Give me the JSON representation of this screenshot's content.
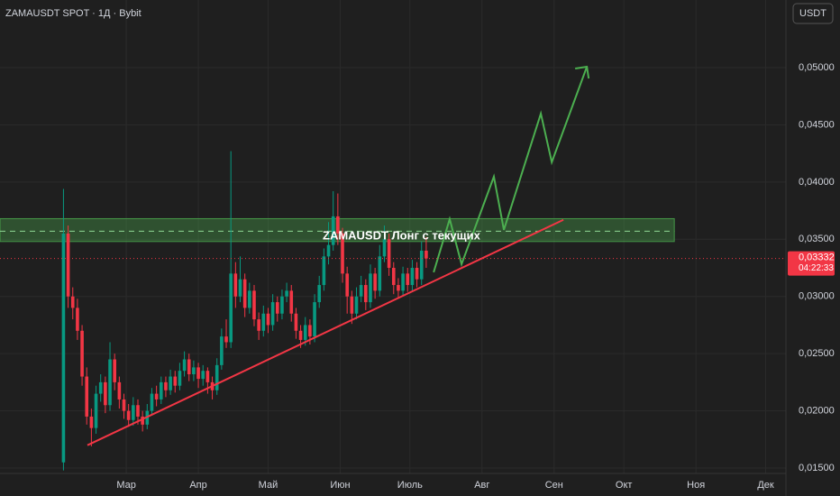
{
  "chart_data": {
    "type": "candlestick",
    "title": "ZAMAUSDT SPOT · 1Д · Bybit",
    "currency": "USDT",
    "annotation": "ZAMAUSDT   Лонг с текущих",
    "up_color": "#089981",
    "down_color": "#f23645",
    "x": [
      -27,
      -25,
      -23,
      -21,
      -19,
      -17,
      -15,
      -13,
      -11,
      -9,
      -7,
      -5,
      -3,
      -1,
      1,
      3,
      5,
      7,
      9,
      11,
      13,
      15,
      17,
      19,
      21,
      23,
      25,
      27,
      29,
      31,
      33,
      35,
      37,
      39,
      41,
      43,
      45,
      47,
      49,
      51,
      53,
      55,
      57,
      59,
      61,
      63,
      65,
      67,
      69,
      71,
      73,
      75,
      77,
      79,
      81,
      83,
      85,
      87,
      89,
      91,
      93,
      95,
      97,
      99,
      101,
      103,
      105,
      107,
      109,
      111,
      113,
      115,
      117,
      119,
      121,
      123,
      125,
      127,
      129
    ],
    "open": [
      0.0155,
      0.0355,
      0.03,
      0.029,
      0.027,
      0.023,
      0.0195,
      0.0185,
      0.0215,
      0.0225,
      0.0205,
      0.0245,
      0.0225,
      0.021,
      0.02,
      0.0192,
      0.0205,
      0.0195,
      0.0188,
      0.02,
      0.0215,
      0.021,
      0.0225,
      0.0218,
      0.023,
      0.0222,
      0.0235,
      0.0245,
      0.0232,
      0.0238,
      0.0228,
      0.0235,
      0.0225,
      0.0218,
      0.024,
      0.0265,
      0.026,
      0.032,
      0.03,
      0.0315,
      0.029,
      0.0305,
      0.028,
      0.027,
      0.0285,
      0.0275,
      0.0295,
      0.0285,
      0.03,
      0.0305,
      0.0285,
      0.027,
      0.0262,
      0.0275,
      0.0265,
      0.0295,
      0.031,
      0.0335,
      0.0345,
      0.037,
      0.0355,
      0.032,
      0.03,
      0.0285,
      0.03,
      0.031,
      0.0295,
      0.032,
      0.0305,
      0.0335,
      0.035,
      0.0325,
      0.031,
      0.0305,
      0.032,
      0.031,
      0.0325,
      0.0315,
      0.034
    ],
    "high": [
      0.0394,
      0.0362,
      0.0308,
      0.0298,
      0.0275,
      0.0238,
      0.0202,
      0.0222,
      0.0232,
      0.023,
      0.026,
      0.025,
      0.023,
      0.0215,
      0.0206,
      0.0212,
      0.021,
      0.02,
      0.0206,
      0.022,
      0.0222,
      0.023,
      0.023,
      0.0236,
      0.0235,
      0.0242,
      0.0252,
      0.025,
      0.0244,
      0.0242,
      0.024,
      0.0238,
      0.023,
      0.0246,
      0.0272,
      0.028,
      0.0427,
      0.033,
      0.0335,
      0.032,
      0.0312,
      0.031,
      0.0286,
      0.0292,
      0.029,
      0.0302,
      0.03,
      0.0306,
      0.0312,
      0.031,
      0.029,
      0.0275,
      0.0282,
      0.028,
      0.0302,
      0.0318,
      0.0342,
      0.0365,
      0.0392,
      0.039,
      0.036,
      0.0326,
      0.0305,
      0.0308,
      0.0318,
      0.0315,
      0.0328,
      0.0325,
      0.0345,
      0.0362,
      0.0355,
      0.033,
      0.0316,
      0.0326,
      0.0325,
      0.0332,
      0.033,
      0.0348,
      0.0352
    ],
    "low": [
      0.0148,
      0.029,
      0.028,
      0.0262,
      0.0222,
      0.0188,
      0.0169,
      0.018,
      0.0208,
      0.0198,
      0.02,
      0.0218,
      0.0202,
      0.0193,
      0.0186,
      0.0187,
      0.0188,
      0.0182,
      0.0184,
      0.0196,
      0.0204,
      0.0206,
      0.0212,
      0.0214,
      0.0216,
      0.0218,
      0.023,
      0.0226,
      0.0226,
      0.022,
      0.0222,
      0.0215,
      0.021,
      0.0214,
      0.0236,
      0.0255,
      0.0255,
      0.029,
      0.0295,
      0.0282,
      0.0285,
      0.0274,
      0.0262,
      0.0265,
      0.0268,
      0.027,
      0.0278,
      0.028,
      0.0295,
      0.0278,
      0.0263,
      0.0255,
      0.0257,
      0.0258,
      0.026,
      0.029,
      0.0305,
      0.0328,
      0.034,
      0.0345,
      0.0312,
      0.0285,
      0.0276,
      0.028,
      0.0295,
      0.0288,
      0.029,
      0.0298,
      0.03,
      0.033,
      0.0318,
      0.0302,
      0.0298,
      0.03,
      0.0304,
      0.0305,
      0.0308,
      0.031,
      0.0325
    ],
    "close": [
      0.0355,
      0.03,
      0.029,
      0.027,
      0.023,
      0.0195,
      0.0185,
      0.0215,
      0.0225,
      0.0205,
      0.0245,
      0.0225,
      0.021,
      0.02,
      0.0192,
      0.0205,
      0.0195,
      0.0188,
      0.02,
      0.0215,
      0.021,
      0.0225,
      0.0218,
      0.023,
      0.0222,
      0.0235,
      0.0245,
      0.0232,
      0.0238,
      0.0228,
      0.0235,
      0.0225,
      0.0218,
      0.024,
      0.0265,
      0.026,
      0.032,
      0.03,
      0.0315,
      0.029,
      0.0305,
      0.028,
      0.027,
      0.0285,
      0.0275,
      0.0295,
      0.0285,
      0.03,
      0.0305,
      0.0285,
      0.027,
      0.0262,
      0.0275,
      0.0265,
      0.0295,
      0.031,
      0.0335,
      0.0345,
      0.037,
      0.0355,
      0.032,
      0.03,
      0.0285,
      0.03,
      0.031,
      0.0295,
      0.032,
      0.0305,
      0.0335,
      0.035,
      0.0325,
      0.031,
      0.0305,
      0.032,
      0.031,
      0.0325,
      0.0315,
      0.034,
      0.03332
    ],
    "last_price": {
      "value": 0.03332,
      "label": "0,03332"
    },
    "countdown": "04:22:33",
    "zone": {
      "x": [
        -54.3,
        235.7
      ],
      "from": 0.0348,
      "to": 0.0368,
      "mid": 0.0357,
      "color": "#4caf50"
    },
    "trend_line": {
      "x": [
        -16.7,
        188
      ],
      "y": [
        0.017,
        0.0367
      ],
      "color": "#f23645"
    },
    "projection": {
      "x": [
        132.2,
        139.1,
        144.2,
        158.1,
        162.4,
        178.3,
        183.0,
        198.1
      ],
      "y": [
        0.03211,
        0.03676,
        0.03282,
        0.04047,
        0.03582,
        0.04598,
        0.04173,
        0.05008
      ],
      "color": "#4caf50"
    },
    "xlim": [
      -54.3,
      283.7
    ],
    "ylim": [
      0.01453,
      0.05591
    ],
    "xticks": [
      {
        "value": 0,
        "label": "Мар"
      },
      {
        "value": 31,
        "label": "Апр"
      },
      {
        "value": 61,
        "label": "Май"
      },
      {
        "value": 92,
        "label": "Июн"
      },
      {
        "value": 122,
        "label": "Июль"
      },
      {
        "value": 153,
        "label": "Авг"
      },
      {
        "value": 184,
        "label": "Сен"
      },
      {
        "value": 214,
        "label": "Окт"
      },
      {
        "value": 245,
        "label": "Ноя"
      },
      {
        "value": 275,
        "label": "Дек"
      }
    ],
    "yticks": [
      {
        "value": 0.015,
        "label": "0,01500"
      },
      {
        "value": 0.02,
        "label": "0,02000"
      },
      {
        "value": 0.025,
        "label": "0,02500"
      },
      {
        "value": 0.03,
        "label": "0,03000"
      },
      {
        "value": 0.035,
        "label": "0,03500"
      },
      {
        "value": 0.04,
        "label": "0,04000"
      },
      {
        "value": 0.045,
        "label": "0,04500"
      },
      {
        "value": 0.05,
        "label": "0,05000"
      }
    ],
    "grid": true
  }
}
